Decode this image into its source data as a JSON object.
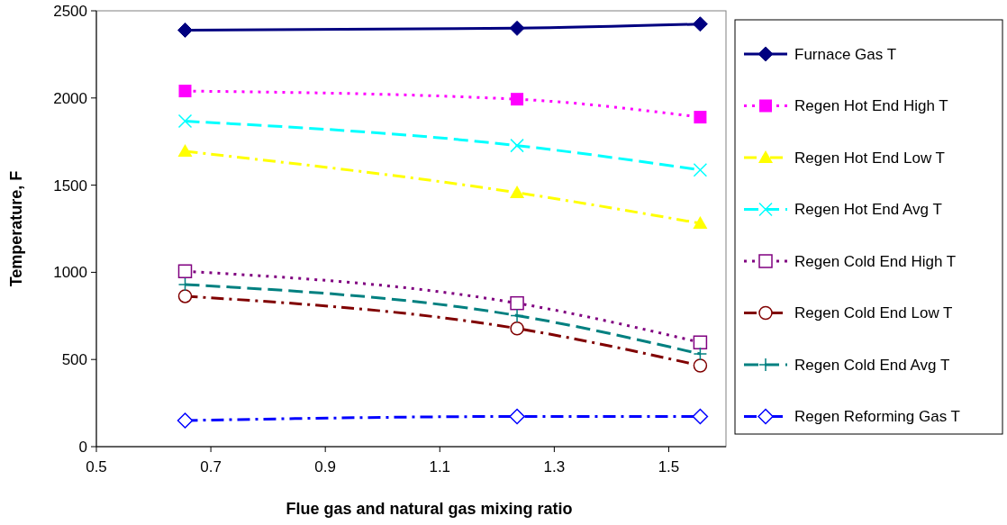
{
  "chart_data": {
    "type": "line",
    "xlabel": "Flue gas and natural gas mixing ratio",
    "ylabel": "Temperature, F",
    "x": [
      0.655,
      1.235,
      1.555
    ],
    "xlim": [
      0.5,
      1.6
    ],
    "xticks": [
      0.5,
      0.7,
      0.9,
      1.1,
      1.3,
      1.5
    ],
    "ylim": [
      0,
      2500
    ],
    "yticks": [
      0,
      500,
      1000,
      1500,
      2000,
      2500
    ],
    "grid": false,
    "legend": "right",
    "series": [
      {
        "name": "Furnace Gas T",
        "color": "#000080",
        "marker": "diamond",
        "line_style": "solid",
        "values": [
          2389,
          2400,
          2424
        ]
      },
      {
        "name": "Regen Hot End High T",
        "color": "#ff00ff",
        "marker": "square",
        "line_style": "dotted",
        "values": [
          2040,
          1993,
          1890
        ]
      },
      {
        "name": "Regen Hot End Low T",
        "color": "#ffff00",
        "marker": "triangle",
        "line_style": "dashdot",
        "values": [
          1694,
          1457,
          1281
        ]
      },
      {
        "name": "Regen Hot End Avg T",
        "color": "#00ffff",
        "marker": "x",
        "line_style": "dashed",
        "values": [
          1867,
          1727,
          1587
        ]
      },
      {
        "name": "Regen Cold End High T",
        "color": "#800080",
        "marker": "square-open",
        "line_style": "dotted",
        "values": [
          1006,
          823,
          598
        ]
      },
      {
        "name": "Regen Cold End Low T",
        "color": "#800000",
        "marker": "circle-open",
        "line_style": "dashdot",
        "values": [
          863,
          678,
          465
        ]
      },
      {
        "name": "Regen Cold End Avg T",
        "color": "#008080",
        "marker": "cross",
        "line_style": "dashed",
        "values": [
          930,
          752,
          532
        ]
      },
      {
        "name": "Regen Reforming Gas T",
        "color": "#0000ff",
        "marker": "diamond-open",
        "line_style": "dashdot",
        "values": [
          150,
          173,
          173
        ]
      }
    ]
  }
}
